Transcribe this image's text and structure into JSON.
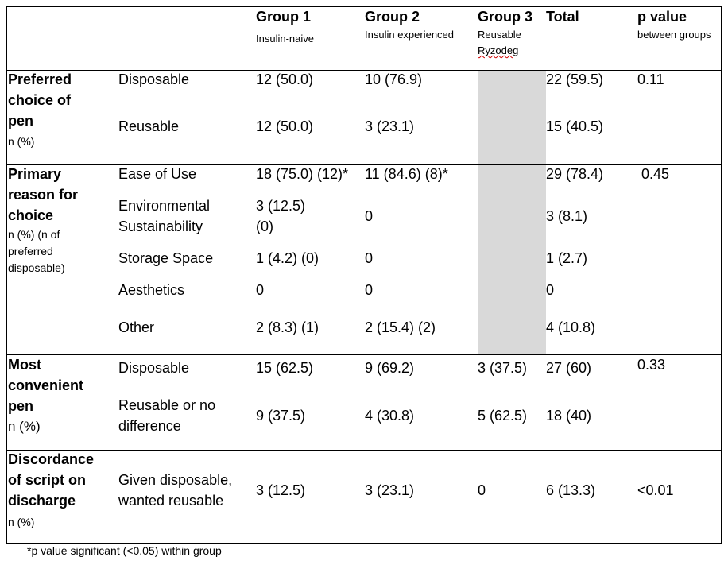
{
  "header": {
    "group1": {
      "title": "Group 1",
      "subtitle": "Insulin-naive"
    },
    "group2": {
      "title": "Group 2",
      "subtitle": "Insulin experienced"
    },
    "group3": {
      "title": "Group 3",
      "subtitle_line1": "Reusable",
      "subtitle_line2": "Ryzodeg"
    },
    "total": {
      "title": "Total"
    },
    "pvalue": {
      "title": "p value",
      "subtitle": "between groups"
    }
  },
  "sections": {
    "preferred": {
      "label": [
        "Preferred",
        "choice of",
        "pen"
      ],
      "sublabel": [
        "n (%)"
      ],
      "rows": [
        {
          "category": [
            "Disposable"
          ],
          "g1": [
            "12 (50.0)"
          ],
          "g2": "10 (76.9)",
          "g3": "",
          "total": "22 (59.5)",
          "p": "0.11"
        },
        {
          "category": [
            "Reusable"
          ],
          "g1": [
            "12 (50.0)"
          ],
          "g2": "3 (23.1)",
          "g3": "",
          "total": "15 (40.5)",
          "p": ""
        }
      ]
    },
    "reason": {
      "label": [
        "Primary",
        "reason for",
        "choice"
      ],
      "sublabel": [
        "n (%) (n of",
        "preferred",
        "disposable)"
      ],
      "rows": [
        {
          "category": [
            "Ease of Use"
          ],
          "g1": [
            "18 (75.0) (12)*"
          ],
          "g2": "11 (84.6) (8)*",
          "g3": "",
          "total": "29 (78.4)",
          "p": "0.45"
        },
        {
          "category": [
            "Environmental",
            "Sustainability"
          ],
          "g1": [
            "3 (12.5)",
            "(0)"
          ],
          "g2": "0",
          "g3": "",
          "total": "3 (8.1)",
          "p": ""
        },
        {
          "category": [
            "Storage Space"
          ],
          "g1": [
            "1 (4.2) (0)"
          ],
          "g2": "0",
          "g3": "",
          "total": "1 (2.7)",
          "p": ""
        },
        {
          "category": [
            "Aesthetics"
          ],
          "g1": [
            "0"
          ],
          "g2": "0",
          "g3": "",
          "total": "0",
          "p": ""
        },
        {
          "category": [
            "Other"
          ],
          "g1": [
            "2 (8.3) (1)"
          ],
          "g2": "2 (15.4) (2)",
          "g3": "",
          "total": "4 (10.8)",
          "p": ""
        }
      ]
    },
    "convenient": {
      "label": [
        "Most",
        "convenient",
        "pen"
      ],
      "sublabel": [
        "n (%)"
      ],
      "rows": [
        {
          "category": [
            "Disposable"
          ],
          "g1": [
            "15 (62.5)"
          ],
          "g2": "9 (69.2)",
          "g3": "3 (37.5)",
          "total": "27 (60)",
          "p": "0.33"
        },
        {
          "category": [
            "Reusable or no",
            "difference"
          ],
          "g1": [
            "9 (37.5)"
          ],
          "g2": "4 (30.8)",
          "g3": "5 (62.5)",
          "total": "18 (40)",
          "p": ""
        }
      ]
    },
    "discordance": {
      "label": [
        "Discordance",
        "of script on",
        "discharge"
      ],
      "sublabel": [
        "n (%)"
      ],
      "rows": [
        {
          "category": [
            "Given disposable,",
            "wanted reusable"
          ],
          "g1": [
            "3 (12.5)"
          ],
          "g2": "3 (23.1)",
          "g3": "0",
          "total": "6 (13.3)",
          "p": "<0.01"
        }
      ]
    }
  },
  "footnote": "*p value significant (<0.05) within group"
}
